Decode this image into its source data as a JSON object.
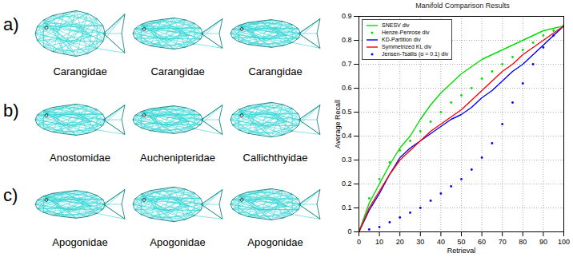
{
  "chart_data": {
    "type": "line",
    "title": "Manifold Comparison Results",
    "x_label": "Retrieval",
    "y_label": "Average Recall",
    "x": [
      0,
      5,
      10,
      15,
      20,
      25,
      30,
      35,
      40,
      45,
      50,
      55,
      60,
      65,
      70,
      75,
      80,
      85,
      90,
      95,
      100
    ],
    "series": [
      {
        "name": "SNESV div",
        "color": "#00dd00",
        "line_style": "solid",
        "marker": "none",
        "values": [
          0,
          0.12,
          0.2,
          0.28,
          0.35,
          0.4,
          0.47,
          0.53,
          0.58,
          0.62,
          0.66,
          0.69,
          0.72,
          0.74,
          0.76,
          0.78,
          0.8,
          0.82,
          0.84,
          0.85,
          0.86
        ]
      },
      {
        "name": "Henze-Penrose div",
        "color": "#00dd00",
        "line_style": "none",
        "marker": "dot",
        "values": [
          0,
          0.14,
          0.22,
          0.29,
          0.34,
          0.38,
          0.42,
          0.46,
          0.5,
          0.54,
          0.57,
          0.6,
          0.64,
          0.67,
          0.7,
          0.73,
          0.76,
          0.79,
          0.82,
          0.84,
          0.86
        ]
      },
      {
        "name": "KD-Partition div",
        "color": "#0000ff",
        "line_style": "solid",
        "marker": "none",
        "values": [
          0,
          0.09,
          0.16,
          0.24,
          0.31,
          0.35,
          0.38,
          0.41,
          0.44,
          0.47,
          0.49,
          0.52,
          0.56,
          0.59,
          0.63,
          0.67,
          0.7,
          0.74,
          0.78,
          0.82,
          0.86
        ]
      },
      {
        "name": "Symmetrized KL div",
        "color": "#ff0000",
        "line_style": "solid",
        "marker": "none",
        "values": [
          0,
          0.1,
          0.17,
          0.24,
          0.3,
          0.34,
          0.38,
          0.42,
          0.45,
          0.48,
          0.51,
          0.55,
          0.59,
          0.63,
          0.67,
          0.7,
          0.74,
          0.77,
          0.8,
          0.83,
          0.86
        ]
      },
      {
        "name": "Jensen-Tsallis (α = 0.1) div",
        "color": "#0000ff",
        "line_style": "none",
        "marker": "dot",
        "values": [
          0,
          0.01,
          0.02,
          0.04,
          0.06,
          0.08,
          0.1,
          0.13,
          0.16,
          0.19,
          0.22,
          0.26,
          0.31,
          0.37,
          0.45,
          0.54,
          0.62,
          0.7,
          0.77,
          0.82,
          0.86
        ]
      }
    ],
    "xlim": [
      0,
      100
    ],
    "xticks": [
      0,
      10,
      20,
      30,
      40,
      50,
      60,
      70,
      80,
      90,
      100
    ],
    "ylim": [
      0,
      0.9
    ],
    "yticks": [
      0,
      0.1,
      0.2,
      0.3,
      0.4,
      0.5,
      0.6,
      0.7,
      0.8,
      0.9
    ],
    "grid": true,
    "legend": "top-left"
  },
  "fish_panels": [
    {
      "label": "a)",
      "captions": [
        "Carangidae",
        "Carangidae",
        "Carangidae"
      ]
    },
    {
      "label": "b)",
      "captions": [
        "Anostomidae",
        "Auchenipteridae",
        "Callichthyidae"
      ]
    },
    {
      "label": "c)",
      "captions": [
        "Apogonidae",
        "Apogonidae",
        "Apogonidae"
      ]
    }
  ]
}
